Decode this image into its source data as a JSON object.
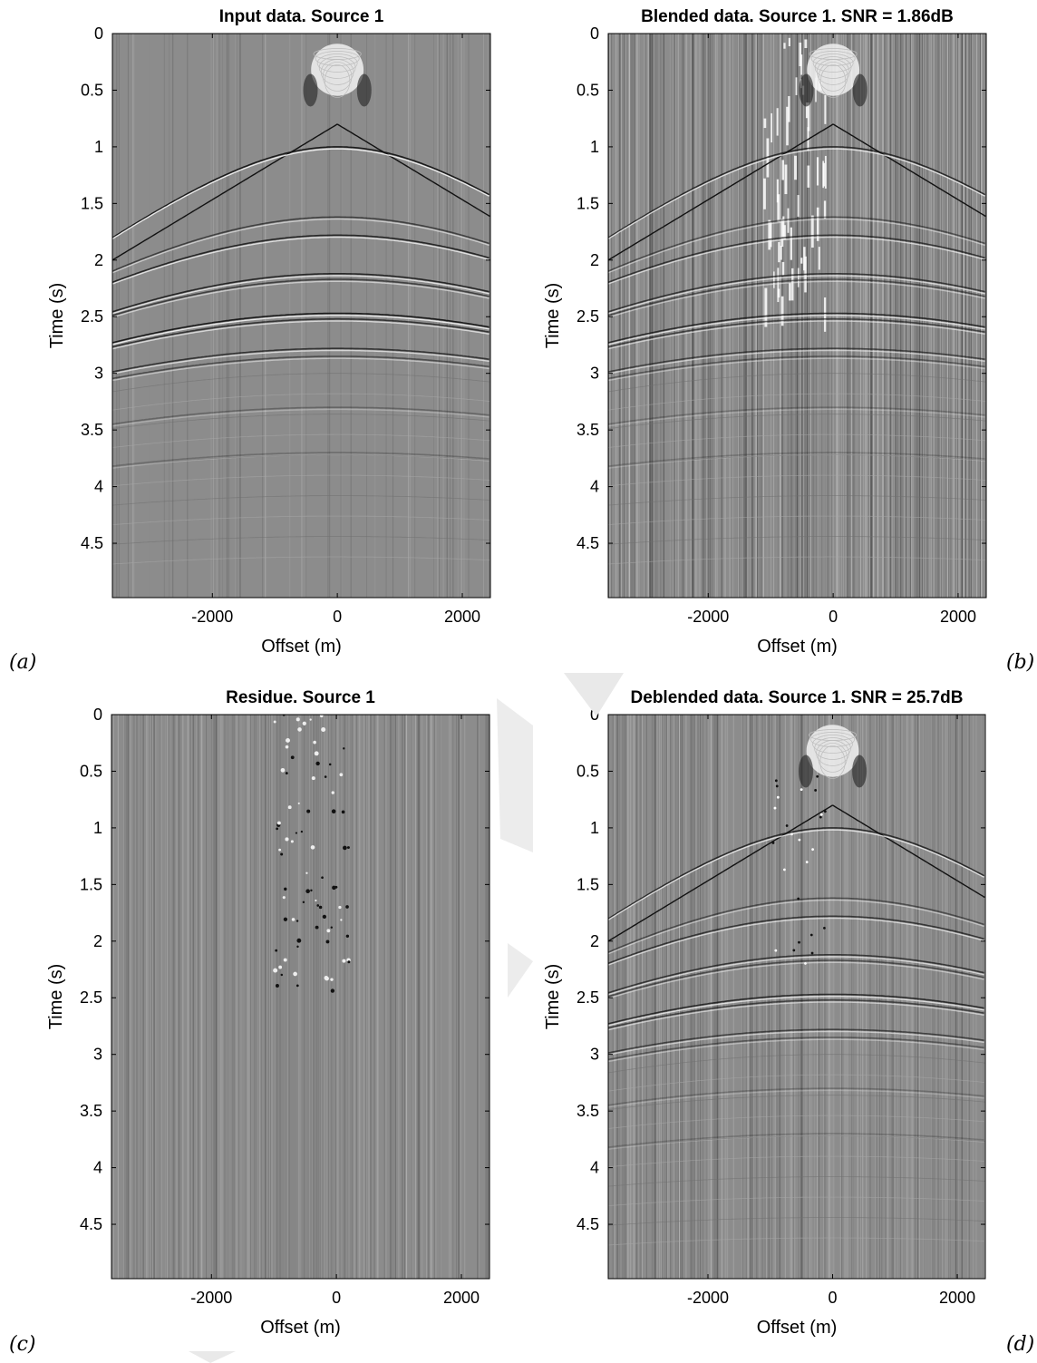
{
  "panels": [
    {
      "label": "(a)"
    },
    {
      "label": "(b)"
    },
    {
      "label": "(c)"
    },
    {
      "label": "(d)"
    }
  ],
  "chart_data": [
    {
      "type": "heatmap",
      "title": "Input data. Source 1",
      "xlabel": "Offset (m)",
      "ylabel": "Time (s)",
      "xlim": [
        -3600,
        2450
      ],
      "ylim": [
        0,
        4.98
      ],
      "y_reversed": true,
      "xticks": [
        -2000,
        0,
        2000
      ],
      "yticks": [
        0,
        0.5,
        1,
        1.5,
        2,
        2.5,
        3,
        3.5,
        4,
        4.5
      ],
      "colormap": "grayscale seismic",
      "content": "shot gather with hyperbolic reflection events, direct wave apex near 0.4 s at offset 0"
    },
    {
      "type": "heatmap",
      "title": "Blended data. Source 1. SNR = 1.86dB",
      "xlabel": "Offset (m)",
      "ylabel": "Time (s)",
      "xlim": [
        -3600,
        2450
      ],
      "ylim": [
        0,
        4.98
      ],
      "y_reversed": true,
      "xticks": [
        -2000,
        0,
        2000
      ],
      "yticks": [
        0,
        0.5,
        1,
        1.5,
        2,
        2.5,
        3,
        3.5,
        4,
        4.5
      ],
      "colormap": "grayscale seismic",
      "snr_db": 1.86
    },
    {
      "type": "heatmap",
      "title": "Residue. Source 1",
      "xlabel": "Offset (m)",
      "ylabel": "Time (s)",
      "xlim": [
        -3600,
        2450
      ],
      "ylim": [
        0,
        4.98
      ],
      "y_reversed": true,
      "xticks": [
        -2000,
        0,
        2000
      ],
      "yticks": [
        0,
        0.5,
        1,
        1.5,
        2,
        2.5,
        3,
        3.5,
        4,
        4.5
      ],
      "colormap": "grayscale seismic"
    },
    {
      "type": "heatmap",
      "title": "Deblended data. Source 1. SNR = 25.7dB",
      "xlabel": "Offset (m)",
      "ylabel": "Time (s)",
      "xlim": [
        -3600,
        2450
      ],
      "ylim": [
        0,
        4.98
      ],
      "y_reversed": true,
      "xticks": [
        -2000,
        0,
        2000
      ],
      "yticks": [
        0,
        0.5,
        1,
        1.5,
        2,
        2.5,
        3,
        3.5,
        4,
        4.5
      ],
      "colormap": "grayscale seismic",
      "snr_db": 25.7
    }
  ]
}
